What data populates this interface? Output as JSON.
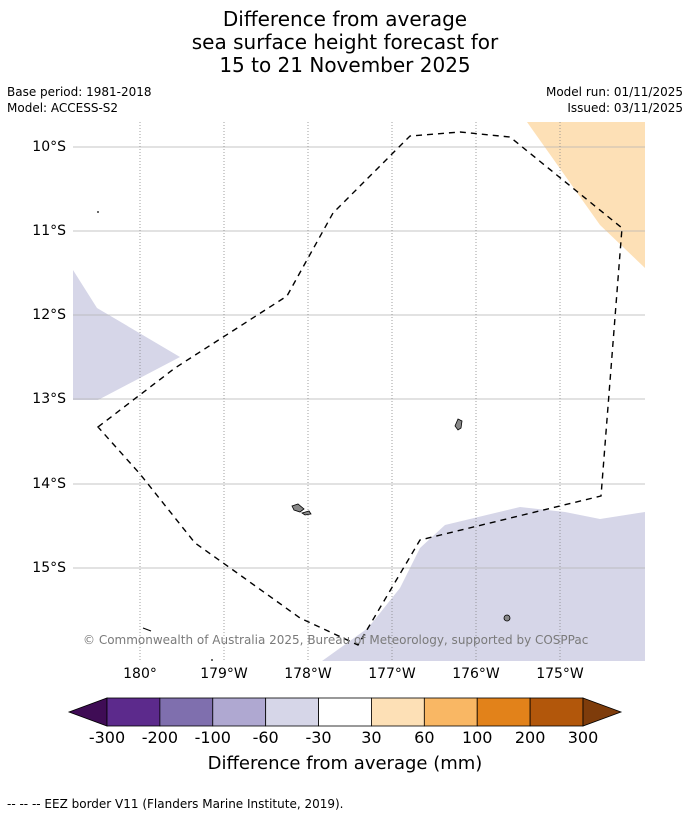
{
  "title": {
    "line1": "Difference from average",
    "line2": "sea surface height forecast for",
    "line3": "15 to 21 November 2025"
  },
  "meta": {
    "base_period": "Base period: 1981-2018",
    "model": "Model: ACCESS-S2",
    "model_run": "Model run: 01/11/2025",
    "issued": "Issued: 03/11/2025"
  },
  "map": {
    "lat_labels": [
      "10°S",
      "11°S",
      "12°S",
      "13°S",
      "14°S",
      "15°S"
    ],
    "lon_labels": [
      "180°",
      "179°W",
      "178°W",
      "177°W",
      "176°W",
      "175°W"
    ],
    "copyright": "© Commonwealth of Australia 2025, Bureau of Meteorology, supported by COSPPac"
  },
  "legend": {
    "ticks": [
      "-300",
      "-200",
      "-100",
      "-60",
      "-30",
      "30",
      "60",
      "100",
      "200",
      "300"
    ],
    "colors": [
      "#3f0c55",
      "#5c2a8c",
      "#7f6fae",
      "#afa8d1",
      "#d6d6e8",
      "#ffffff",
      "#fde0b6",
      "#f9b764",
      "#e2821a",
      "#b2570b",
      "#7e3c0b"
    ],
    "label": "Difference from average (mm)"
  },
  "footer": {
    "eez_note": "--  --  -- EEZ border V11 (Flanders Marine Institute, 2019)."
  }
}
